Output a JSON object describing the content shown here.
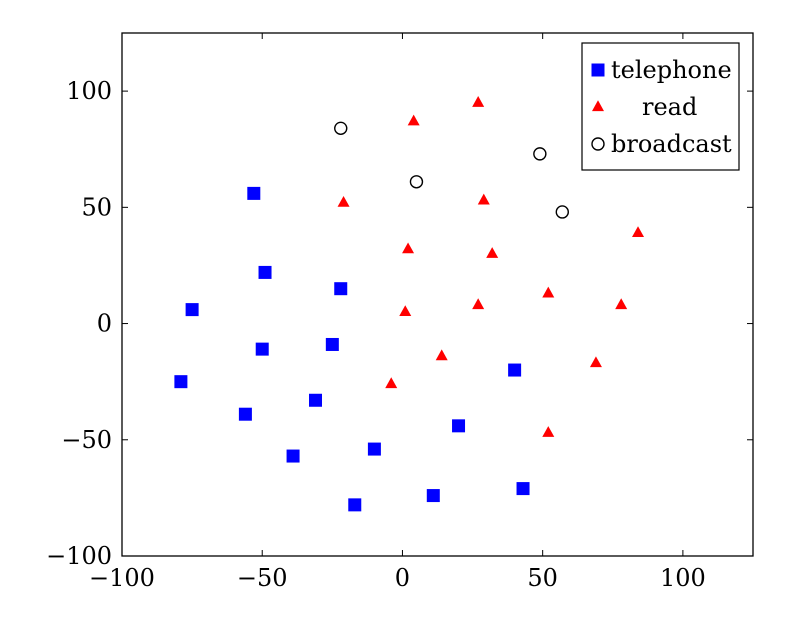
{
  "chart_data": {
    "type": "scatter",
    "xlim": [
      -100,
      125
    ],
    "ylim": [
      -100,
      125
    ],
    "xticks": [
      -100,
      -50,
      0,
      50,
      100
    ],
    "yticks": [
      -100,
      -50,
      0,
      50,
      100
    ],
    "xtick_labels": [
      "−100",
      "−50",
      "0",
      "50",
      "100"
    ],
    "ytick_labels": [
      "−100",
      "−50",
      "0",
      "50",
      "100"
    ],
    "grid": false,
    "legend_position": "top-right",
    "series": [
      {
        "name": "telephone",
        "marker": "square",
        "color": "#0000ff",
        "points": [
          [
            -53,
            56
          ],
          [
            -49,
            22
          ],
          [
            -75,
            6
          ],
          [
            -22,
            15
          ],
          [
            -50,
            -11
          ],
          [
            -25,
            -9
          ],
          [
            -79,
            -25
          ],
          [
            -56,
            -39
          ],
          [
            -31,
            -33
          ],
          [
            -39,
            -57
          ],
          [
            -10,
            -54
          ],
          [
            -17,
            -78
          ],
          [
            20,
            -44
          ],
          [
            40,
            -20
          ],
          [
            11,
            -74
          ],
          [
            43,
            -71
          ]
        ]
      },
      {
        "name": "read",
        "marker": "triangle",
        "color": "#ff0000",
        "points": [
          [
            27,
            95
          ],
          [
            4,
            87
          ],
          [
            -21,
            52
          ],
          [
            29,
            53
          ],
          [
            2,
            32
          ],
          [
            32,
            30
          ],
          [
            84,
            39
          ],
          [
            1,
            5
          ],
          [
            27,
            8
          ],
          [
            52,
            13
          ],
          [
            78,
            8
          ],
          [
            14,
            -14
          ],
          [
            -4,
            -26
          ],
          [
            69,
            -17
          ],
          [
            52,
            -47
          ]
        ]
      },
      {
        "name": "broadcast",
        "marker": "circle",
        "color": "#000000",
        "points": [
          [
            -22,
            84
          ],
          [
            5,
            61
          ],
          [
            49,
            73
          ],
          [
            57,
            48
          ]
        ]
      }
    ]
  }
}
